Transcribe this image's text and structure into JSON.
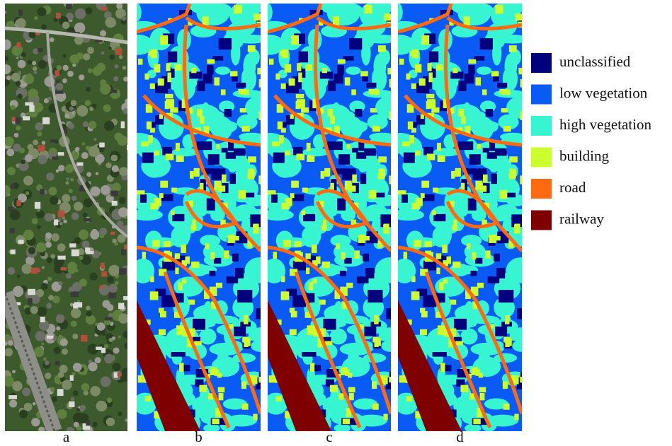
{
  "panels": [
    "a",
    "b",
    "c",
    "d"
  ],
  "legend": {
    "items": [
      {
        "label": "unclassified",
        "color": "#00007f"
      },
      {
        "label": "low vegetation",
        "color": "#0a5af5"
      },
      {
        "label": "high vegetation",
        "color": "#36f5d0"
      },
      {
        "label": "building",
        "color": "#ccff2e"
      },
      {
        "label": "road",
        "color": "#ff6a10"
      },
      {
        "label": "railway",
        "color": "#7f0000"
      }
    ]
  }
}
